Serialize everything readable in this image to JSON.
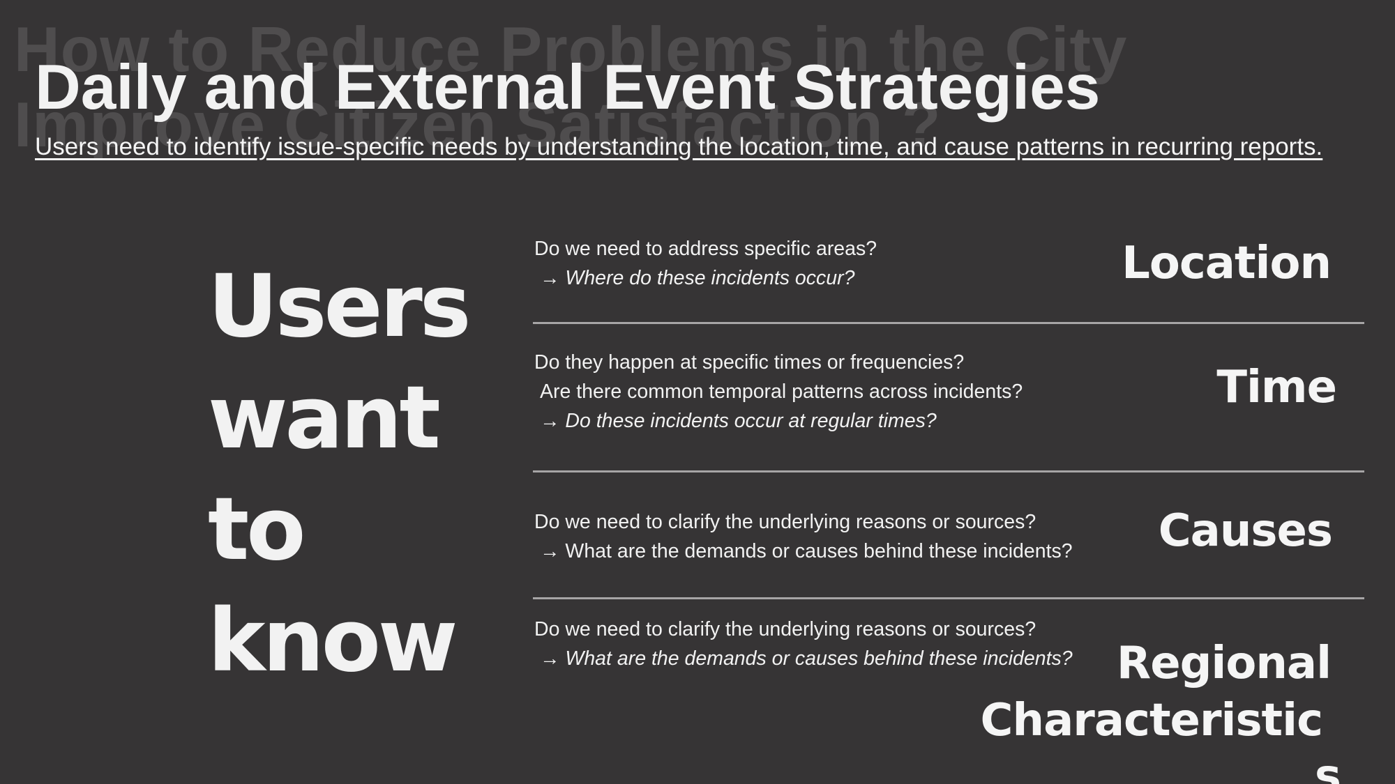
{
  "slide": {
    "background_color": "#363435",
    "ghost_title": "How to Reduce Problems in the City Improve Citizen Satisfaction ?",
    "title": "Daily and External Event Strategies",
    "subtitle": "Users need to identify issue-specific needs by understanding the location, time, and cause patterns in recurring reports.",
    "big_words": [
      "Users",
      "want",
      "to",
      "know"
    ]
  },
  "rows": [
    {
      "lines": [
        {
          "text": "Do we need to address specific areas?",
          "italic": false
        },
        {
          "text": "→ Where do these incidents occur?",
          "italic": true
        }
      ],
      "category": "Location"
    },
    {
      "lines": [
        {
          "text": "Do they happen at specific times or frequencies?",
          "italic": false
        },
        {
          "text": "Are there common temporal patterns across incidents?",
          "italic": false
        },
        {
          "text": "→ Do these incidents occur at regular times?",
          "italic": true
        }
      ],
      "category": "Time"
    },
    {
      "lines": [
        {
          "text": "Do we need to clarify the underlying reasons or sources?",
          "italic": false
        },
        {
          "text": "→ What are the demands or causes behind these incidents?",
          "italic": false
        }
      ],
      "category": "Causes"
    },
    {
      "lines": [
        {
          "text": "Do we need to clarify the underlying reasons or sources?",
          "italic": false
        },
        {
          "text": "→ What are the demands or causes behind these incidents?",
          "italic": true
        }
      ],
      "category_lines": [
        "Regional",
        "Characteristic",
        "s"
      ]
    }
  ]
}
